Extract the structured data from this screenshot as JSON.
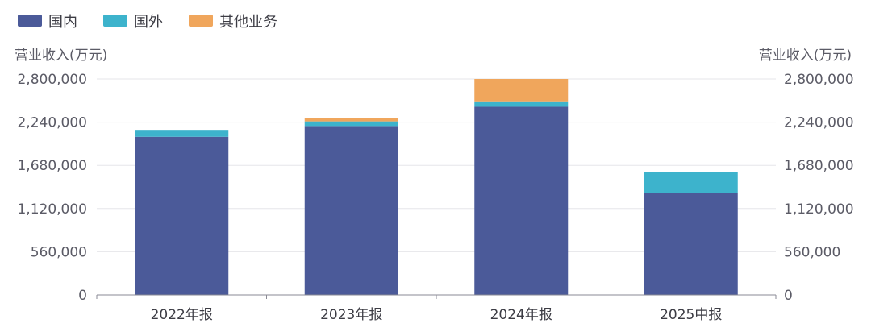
{
  "chart_data": {
    "type": "bar",
    "stacked": true,
    "categories": [
      "2022年报",
      "2023年报",
      "2024年报",
      "2025中报"
    ],
    "series": [
      {
        "name": "国内",
        "color": "#4b5a99",
        "values": [
          2050000,
          2190000,
          2440000,
          1320000
        ]
      },
      {
        "name": "国外",
        "color": "#3db3cc",
        "values": [
          90000,
          60000,
          70000,
          270000
        ]
      },
      {
        "name": "其他业务",
        "color": "#f0a65c",
        "values": [
          0,
          40000,
          290000,
          0
        ]
      }
    ],
    "ylabel_left": "营业收入(万元)",
    "ylabel_right": "营业收入(万元)",
    "ylim": [
      0,
      2800000
    ],
    "yticks": [
      0,
      560000,
      1120000,
      1680000,
      2240000,
      2800000
    ],
    "ytick_labels": [
      "0",
      "560,000",
      "1,120,000",
      "1,680,000",
      "2,240,000",
      "2,800,000"
    ],
    "grid": true,
    "legend_position": "top-left"
  }
}
